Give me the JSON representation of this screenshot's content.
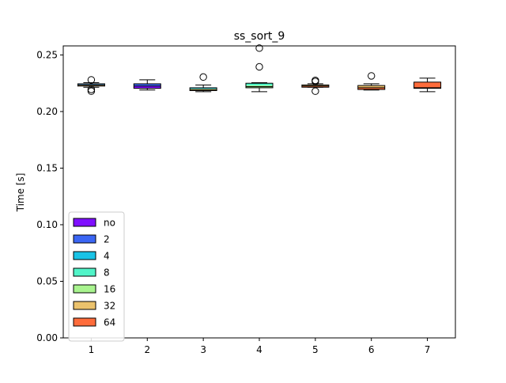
{
  "chart_data": {
    "type": "box",
    "title": "ss_sort_9",
    "xlabel": "",
    "ylabel": "Time [s]",
    "categories": [
      "1",
      "2",
      "3",
      "4",
      "5",
      "6",
      "7"
    ],
    "ylim": [
      0,
      0.258
    ],
    "yticks": [
      0.0,
      0.05,
      0.1,
      0.15,
      0.2,
      0.25
    ],
    "ytick_labels": [
      "0.00",
      "0.05",
      "0.10",
      "0.15",
      "0.20",
      "0.25"
    ],
    "grid": false,
    "legend_position": "lower-left",
    "legend": [
      {
        "label": "no",
        "color": "#7f0fff"
      },
      {
        "label": "2",
        "color": "#3b66f4"
      },
      {
        "label": "4",
        "color": "#19c3e6"
      },
      {
        "label": "8",
        "color": "#51f4c8"
      },
      {
        "label": "16",
        "color": "#a9f48f"
      },
      {
        "label": "32",
        "color": "#ebc26c"
      },
      {
        "label": "64",
        "color": "#ff6c3b"
      }
    ],
    "boxes": [
      {
        "category": "1",
        "whisker_low": 0.2215,
        "q1": 0.2225,
        "median": 0.2235,
        "q3": 0.2245,
        "whisker_high": 0.2255,
        "fliers": [
          0.228,
          0.2195,
          0.218
        ],
        "colors": [
          "#7f0fff",
          "#3b66f4",
          "#19c3e6",
          "#51f4c8",
          "#a9f48f",
          "#ebc26c",
          "#ff6c3b"
        ]
      },
      {
        "category": "2",
        "whisker_low": 0.219,
        "q1": 0.2205,
        "median": 0.2225,
        "q3": 0.2245,
        "whisker_high": 0.228,
        "fliers": [],
        "colors": [
          "#3b66f4",
          "#7f0fff"
        ]
      },
      {
        "category": "3",
        "whisker_low": 0.2175,
        "q1": 0.2185,
        "median": 0.2195,
        "q3": 0.221,
        "whisker_high": 0.2235,
        "fliers": [
          0.2305
        ],
        "colors": [
          "#19c3e6",
          "#a9f48f",
          "#ebc26c"
        ]
      },
      {
        "category": "4",
        "whisker_low": 0.2175,
        "q1": 0.221,
        "median": 0.222,
        "q3": 0.225,
        "whisker_high": 0.2255,
        "fliers": [
          0.256,
          0.2395
        ],
        "colors": [
          "#51f4c8",
          "#a9f48f"
        ]
      },
      {
        "category": "5",
        "whisker_low": 0.2215,
        "q1": 0.2215,
        "median": 0.2225,
        "q3": 0.2235,
        "whisker_high": 0.2245,
        "fliers": [
          0.2275,
          0.2265,
          0.218
        ],
        "colors": [
          "#ebc26c",
          "#ff6c3b"
        ]
      },
      {
        "category": "6",
        "whisker_low": 0.219,
        "q1": 0.2195,
        "median": 0.221,
        "q3": 0.223,
        "whisker_high": 0.2245,
        "fliers": [
          0.2315
        ],
        "colors": [
          "#ebc26c",
          "#ff6c3b"
        ]
      },
      {
        "category": "7",
        "whisker_low": 0.2175,
        "q1": 0.2205,
        "median": 0.221,
        "q3": 0.226,
        "whisker_high": 0.2295,
        "fliers": [],
        "colors": [
          "#ff6c3b"
        ]
      }
    ]
  }
}
